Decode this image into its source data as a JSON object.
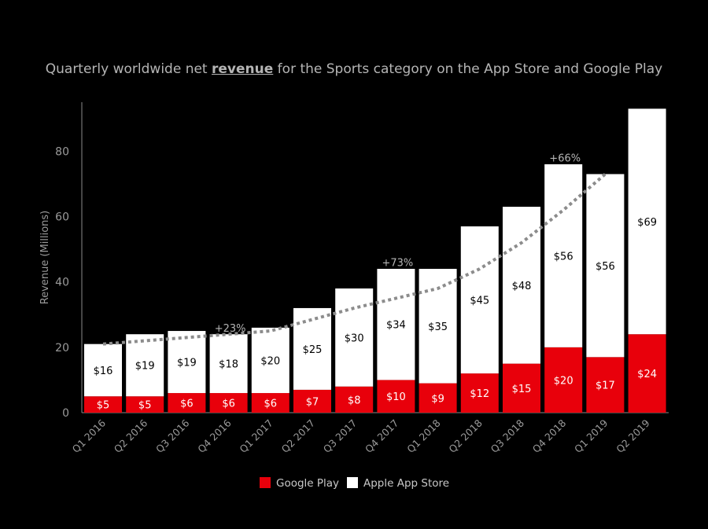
{
  "title": {
    "prefix": "Quarterly worldwide net ",
    "emphasis": "revenue",
    "suffix": " for the Sports category on the App Store and Google Play"
  },
  "colors": {
    "background": "#000000",
    "google_play": "#e8000b",
    "apple_app_store": "#ffffff",
    "trend": "#8c8c8c",
    "text": "#b5b5b5"
  },
  "chart_data": {
    "type": "bar",
    "stacked": true,
    "categories": [
      "Q1 2016",
      "Q2 2016",
      "Q3 2016",
      "Q4 2016",
      "Q1 2017",
      "Q2 2017",
      "Q3 2017",
      "Q4 2017",
      "Q1 2018",
      "Q2 2018",
      "Q3 2018",
      "Q4 2018",
      "Q1 2019",
      "Q2 2019"
    ],
    "series": [
      {
        "name": "Google Play",
        "color": "#e8000b",
        "values": [
          5,
          5,
          6,
          6,
          6,
          7,
          8,
          10,
          9,
          12,
          15,
          20,
          17,
          24
        ],
        "labels": [
          "$5",
          "$5",
          "$6",
          "$6",
          "$6",
          "$7",
          "$8",
          "$10",
          "$9",
          "$12",
          "$15",
          "$20",
          "$17",
          "$24"
        ]
      },
      {
        "name": "Apple App Store",
        "color": "#ffffff",
        "values": [
          16,
          19,
          19,
          18,
          20,
          25,
          30,
          34,
          35,
          45,
          48,
          56,
          56,
          69
        ],
        "labels": [
          "$16",
          "$19",
          "$19",
          "$18",
          "$20",
          "$25",
          "$30",
          "$34",
          "$35",
          "$45",
          "$48",
          "$56",
          "$56",
          "$69"
        ]
      }
    ],
    "trend_line": {
      "style": "dotted",
      "points": [
        [
          0,
          21
        ],
        [
          1,
          22
        ],
        [
          2,
          23
        ],
        [
          3,
          24
        ],
        [
          4,
          25
        ],
        [
          5,
          28.5
        ],
        [
          6,
          32
        ],
        [
          7,
          35
        ],
        [
          8,
          38
        ],
        [
          9,
          44
        ],
        [
          10,
          52
        ],
        [
          11,
          62
        ],
        [
          12,
          73
        ]
      ]
    },
    "annotations": [
      {
        "text": "+23%",
        "x": 3,
        "y": 26
      },
      {
        "text": "+73%",
        "x": 7,
        "y": 46
      },
      {
        "text": "+66%",
        "x": 11,
        "y": 78
      }
    ],
    "ylabel": "Revenue (Millions)",
    "xlabel": "",
    "yticks": [
      0,
      20,
      40,
      60,
      80
    ],
    "ylim": [
      0,
      95
    ],
    "legend": {
      "position": "bottom",
      "entries": [
        "Google Play",
        "Apple App Store"
      ]
    },
    "grid": false
  }
}
